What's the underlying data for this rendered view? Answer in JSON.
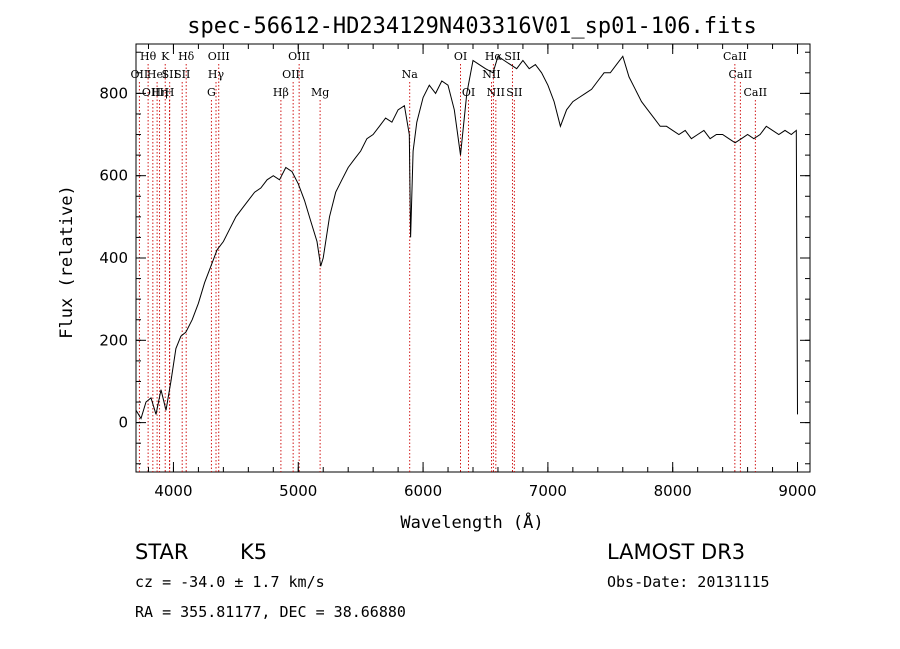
{
  "chart_data": {
    "type": "line",
    "title": "spec-56612-HD234129N403316V01_sp01-106.fits",
    "xlabel": "Wavelength (Å)",
    "ylabel": "Flux (relative)",
    "xlim": [
      3700,
      9100
    ],
    "ylim": [
      -120,
      920
    ],
    "xticks": [
      4000,
      5000,
      6000,
      7000,
      8000,
      9000
    ],
    "yticks": [
      0,
      200,
      400,
      600,
      800
    ],
    "series": [
      {
        "color": "#000000",
        "x": [
          3700,
          3740,
          3780,
          3820,
          3860,
          3900,
          3940,
          3980,
          4020,
          4060,
          4100,
          4150,
          4200,
          4250,
          4300,
          4350,
          4400,
          4450,
          4500,
          4550,
          4600,
          4650,
          4700,
          4750,
          4800,
          4850,
          4900,
          4950,
          5000,
          5050,
          5100,
          5150,
          5180,
          5200,
          5250,
          5300,
          5350,
          5400,
          5450,
          5500,
          5550,
          5600,
          5650,
          5700,
          5750,
          5800,
          5850,
          5890,
          5900,
          5920,
          5950,
          6000,
          6050,
          6100,
          6150,
          6200,
          6250,
          6300,
          6350,
          6400,
          6450,
          6500,
          6560,
          6600,
          6650,
          6700,
          6750,
          6800,
          6850,
          6900,
          6950,
          7000,
          7050,
          7100,
          7150,
          7200,
          7250,
          7300,
          7350,
          7400,
          7450,
          7500,
          7550,
          7600,
          7650,
          7700,
          7750,
          7800,
          7850,
          7900,
          7950,
          8000,
          8050,
          8100,
          8150,
          8200,
          8250,
          8300,
          8350,
          8400,
          8450,
          8500,
          8550,
          8600,
          8650,
          8700,
          8750,
          8800,
          8850,
          8900,
          8950,
          8990,
          9000
        ],
        "y": [
          30,
          10,
          50,
          60,
          20,
          80,
          30,
          100,
          180,
          210,
          220,
          250,
          290,
          340,
          380,
          420,
          440,
          470,
          500,
          520,
          540,
          560,
          570,
          590,
          600,
          590,
          620,
          610,
          580,
          540,
          490,
          440,
          380,
          400,
          500,
          560,
          590,
          620,
          640,
          660,
          690,
          700,
          720,
          740,
          730,
          760,
          770,
          700,
          450,
          660,
          730,
          790,
          820,
          800,
          830,
          820,
          760,
          650,
          800,
          880,
          870,
          860,
          850,
          890,
          880,
          870,
          860,
          880,
          860,
          870,
          850,
          820,
          780,
          720,
          760,
          780,
          790,
          800,
          810,
          830,
          850,
          850,
          870,
          890,
          840,
          810,
          780,
          760,
          740,
          720,
          720,
          710,
          700,
          710,
          690,
          700,
          710,
          690,
          700,
          700,
          690,
          680,
          690,
          700,
          690,
          700,
          720,
          710,
          700,
          710,
          700,
          710,
          20
        ]
      }
    ],
    "annotations": [
      {
        "label": "OII",
        "x": 3727,
        "row": 1
      },
      {
        "label": "Hθ",
        "x": 3797,
        "row": 0
      },
      {
        "label": "OIII",
        "x": 3835,
        "row": 2
      },
      {
        "label": "HeI",
        "x": 3869,
        "row": 1
      },
      {
        "label": "Hη",
        "x": 3889,
        "row": 2
      },
      {
        "label": "K",
        "x": 3934,
        "row": 0
      },
      {
        "label": "SII",
        "x": 3970,
        "row": 1
      },
      {
        "label": "H",
        "x": 3969,
        "row": 2
      },
      {
        "label": "Hδ",
        "x": 4102,
        "row": 0
      },
      {
        "label": "SII",
        "x": 4070,
        "row": 1
      },
      {
        "label": "G",
        "x": 4304,
        "row": 2
      },
      {
        "label": "OIII",
        "x": 4363,
        "row": 0
      },
      {
        "label": "Hγ",
        "x": 4341,
        "row": 1
      },
      {
        "label": "Hβ",
        "x": 4861,
        "row": 2
      },
      {
        "label": "OIII",
        "x": 5007,
        "row": 0
      },
      {
        "label": "OIII",
        "x": 4959,
        "row": 1
      },
      {
        "label": "Mg",
        "x": 5175,
        "row": 2
      },
      {
        "label": "Na",
        "x": 5893,
        "row": 1
      },
      {
        "label": "OI",
        "x": 6300,
        "row": 0
      },
      {
        "label": "OI",
        "x": 6364,
        "row": 2
      },
      {
        "label": "Hα",
        "x": 6563,
        "row": 0
      },
      {
        "label": "NII",
        "x": 6548,
        "row": 1
      },
      {
        "label": "NII",
        "x": 6583,
        "row": 2
      },
      {
        "label": "SII",
        "x": 6716,
        "row": 0
      },
      {
        "label": "SII",
        "x": 6731,
        "row": 2
      },
      {
        "label": "CaII",
        "x": 8498,
        "row": 0
      },
      {
        "label": "CaII",
        "x": 8542,
        "row": 1
      },
      {
        "label": "CaII",
        "x": 8662,
        "row": 2
      }
    ]
  },
  "info": {
    "object_type": "STAR",
    "subclass": "K5",
    "survey": "LAMOST DR3",
    "cz": "cz = -34.0 ± 1.7 km/s",
    "obs_date": "Obs-Date: 20131115",
    "coords": "RA = 355.81177, DEC =  38.66880"
  }
}
